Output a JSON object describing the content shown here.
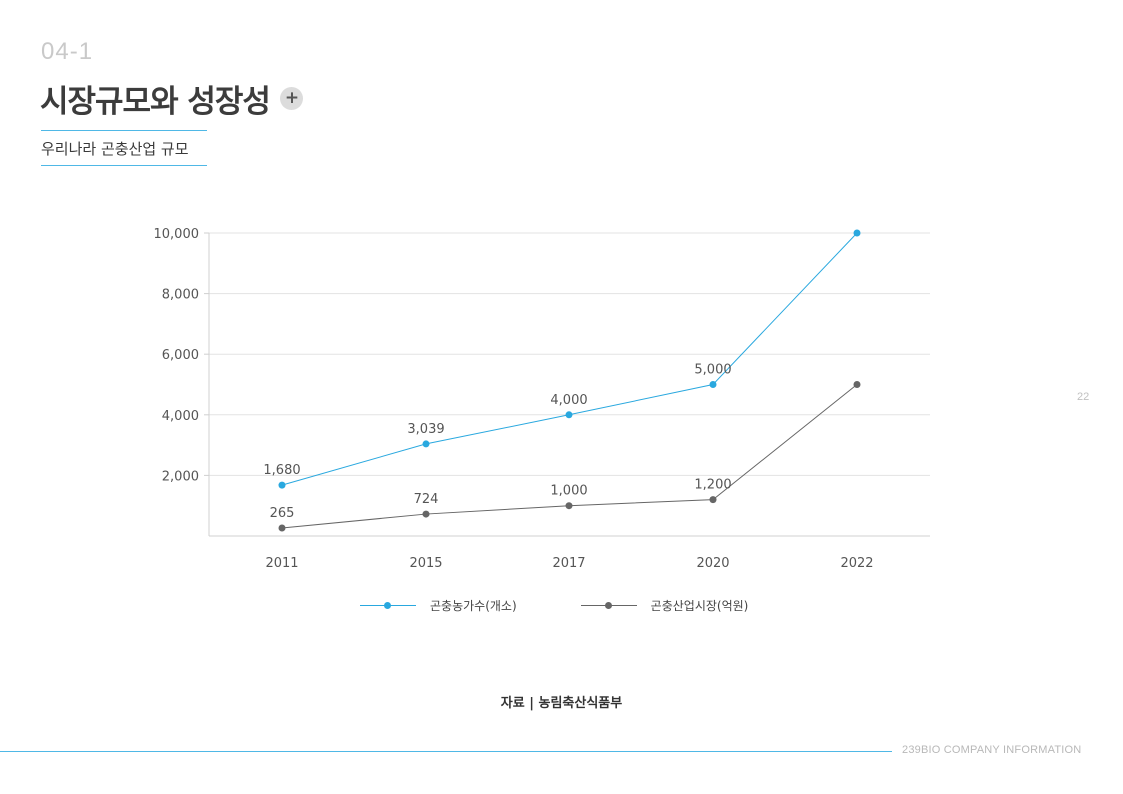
{
  "header": {
    "section_number": "04-1",
    "title": "시장규모와 성장성",
    "plus_symbol": "+",
    "subtitle": "우리나라 곤충산업 규모"
  },
  "chart_data": {
    "type": "line",
    "categories": [
      "2011",
      "2015",
      "2017",
      "2020",
      "2022"
    ],
    "yticks": [
      "2,000",
      "4,000",
      "6,000",
      "8,000",
      "10,000"
    ],
    "ylim": [
      0,
      10000
    ],
    "grid": true,
    "legend_position": "bottom",
    "series": [
      {
        "name": "곤충농가수(개소)",
        "color": "#29a8df",
        "values": [
          1680,
          3039,
          4000,
          5000,
          10000
        ],
        "labels": [
          "1,680",
          "3,039",
          "4,000",
          "5,000",
          ""
        ]
      },
      {
        "name": "곤충산업시장(억원)",
        "color": "#666666",
        "values": [
          265,
          724,
          1000,
          1200,
          5000
        ],
        "labels": [
          "265",
          "724",
          "1,000",
          "1,200",
          ""
        ]
      }
    ]
  },
  "legend": {
    "items": [
      {
        "label": "곤충농가수(개소)",
        "color": "#29a8df"
      },
      {
        "label": "곤충산업시장(억원)",
        "color": "#666666"
      }
    ]
  },
  "source": "자료 | 농림축산식품부",
  "page_number": "22",
  "footer": "239BIO COMPANY INFORMATION",
  "colors": {
    "accent": "#4fb8e6"
  }
}
